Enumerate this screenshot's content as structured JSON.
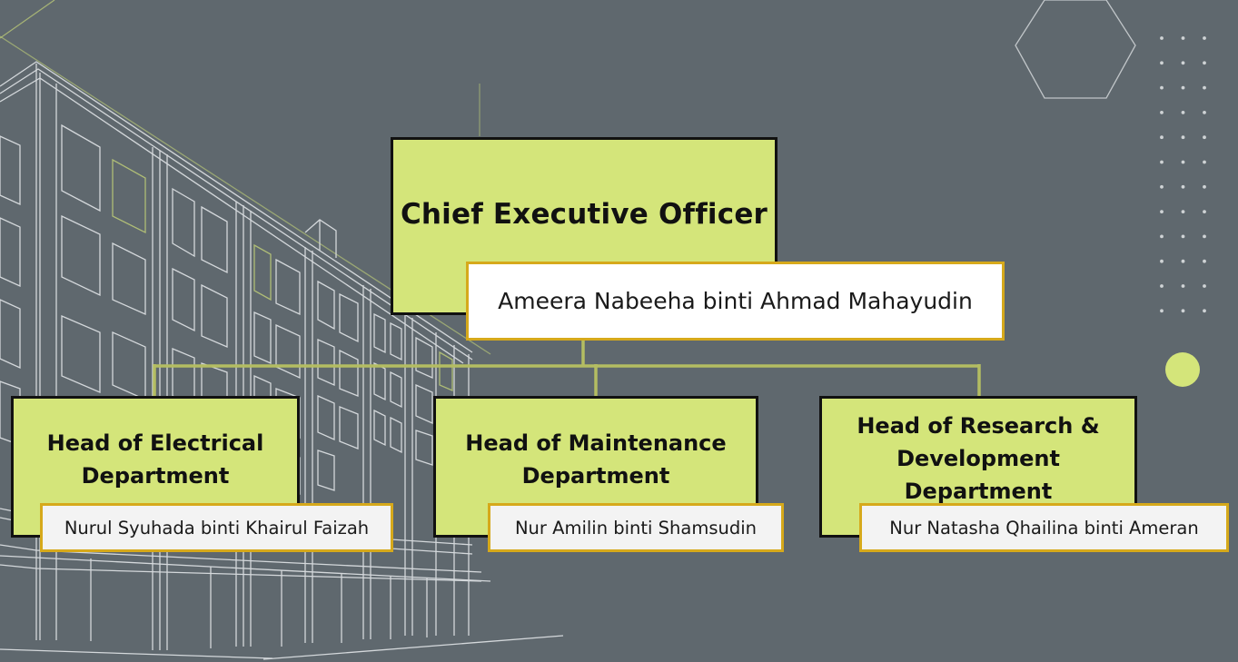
{
  "org_chart": {
    "ceo": {
      "title": "Chief Executive Officer",
      "name": "Ameera Nabeeha binti Ahmad Mahayudin"
    },
    "departments": [
      {
        "title": "Head of Electrical Department",
        "name": "Nurul Syuhada binti Khairul Faizah"
      },
      {
        "title": "Head of Maintenance Department",
        "name": "Nur Amilin binti Shamsudin"
      },
      {
        "title": "Head of Research & Development Department",
        "name": "Nur Natasha Qhailina binti Ameran"
      }
    ]
  },
  "colors": {
    "background": "#5f686e",
    "title_box": "#d4e57a",
    "name_border": "#d6a91b",
    "connector": "#b4bd62",
    "accent_dot": "#d4e57a"
  },
  "decorations": [
    "building-line-drawing",
    "hexagon-outline",
    "dot-grid",
    "accent-circle"
  ]
}
